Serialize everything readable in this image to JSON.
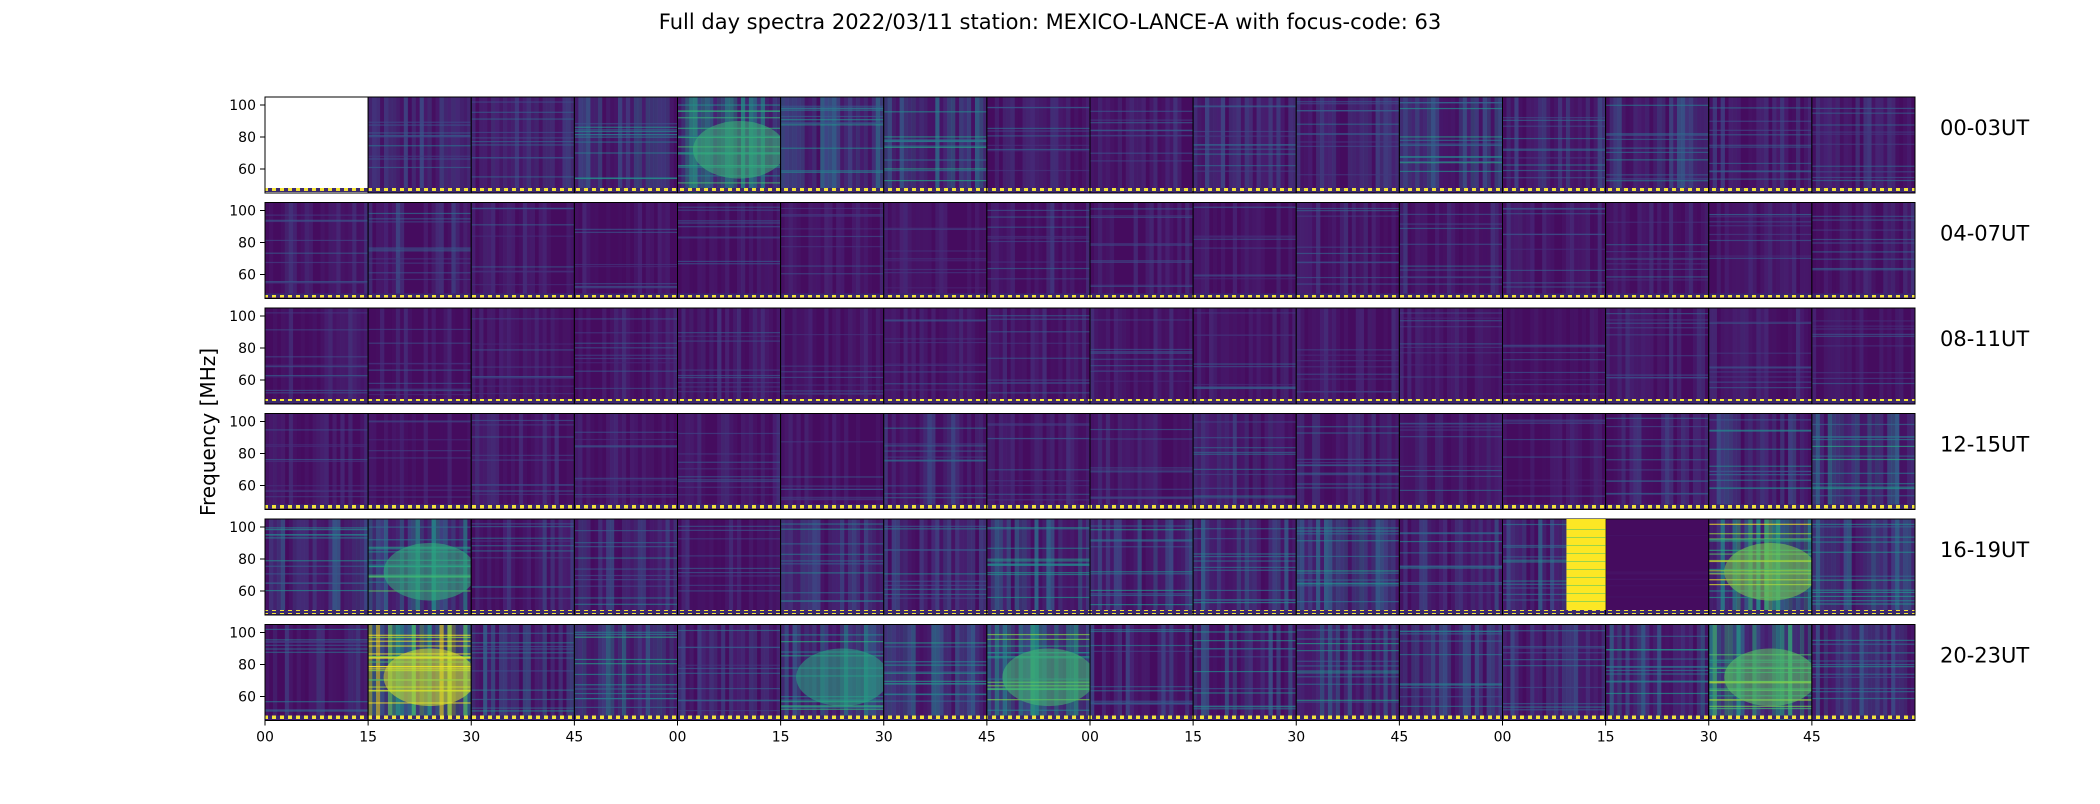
{
  "chart_data": {
    "type": "heatmap",
    "title": "Full day spectra 2022/03/11 station: MEXICO-LANCE-A with focus-code: 63",
    "ylabel": "Frequency [MHz]",
    "y_range": [
      45,
      105
    ],
    "y_ticks": [
      60,
      80,
      100
    ],
    "x_ticks": [
      "00",
      "15",
      "30",
      "45",
      "00",
      "15",
      "30",
      "45",
      "00",
      "15",
      "30",
      "45",
      "00",
      "15",
      "30",
      "45"
    ],
    "colormap": "viridis",
    "panels_per_row": 16,
    "rows": [
      {
        "label": "00-03UT",
        "intensity": [
          null,
          0.22,
          0.2,
          0.28,
          0.42,
          0.3,
          0.32,
          0.18,
          0.17,
          0.2,
          0.2,
          0.34,
          0.22,
          0.24,
          0.2,
          0.2
        ]
      },
      {
        "label": "04-07UT",
        "intensity": [
          0.16,
          0.2,
          0.16,
          0.14,
          0.15,
          0.14,
          0.14,
          0.17,
          0.15,
          0.15,
          0.17,
          0.18,
          0.16,
          0.17,
          0.16,
          0.17
        ]
      },
      {
        "label": "08-11UT",
        "intensity": [
          0.16,
          0.15,
          0.15,
          0.15,
          0.16,
          0.14,
          0.15,
          0.16,
          0.15,
          0.16,
          0.15,
          0.15,
          0.14,
          0.17,
          0.16,
          0.15
        ]
      },
      {
        "label": "12-15UT",
        "intensity": [
          0.15,
          0.14,
          0.16,
          0.15,
          0.17,
          0.14,
          0.2,
          0.16,
          0.16,
          0.22,
          0.2,
          0.18,
          0.14,
          0.2,
          0.25,
          0.32
        ]
      },
      {
        "label": "16-19UT",
        "intensity": [
          0.26,
          0.4,
          0.2,
          0.24,
          0.16,
          0.24,
          0.24,
          0.3,
          0.28,
          0.26,
          0.3,
          0.24,
          0.26,
          0.05,
          0.55,
          0.3
        ]
      },
      {
        "label": "20-23UT",
        "intensity": [
          0.22,
          0.7,
          0.26,
          0.34,
          0.2,
          0.36,
          0.3,
          0.44,
          0.22,
          0.26,
          0.3,
          0.24,
          0.22,
          0.3,
          0.5,
          0.26
        ]
      }
    ],
    "burst": {
      "row": 4,
      "panel": 12,
      "value": 1.0
    }
  }
}
